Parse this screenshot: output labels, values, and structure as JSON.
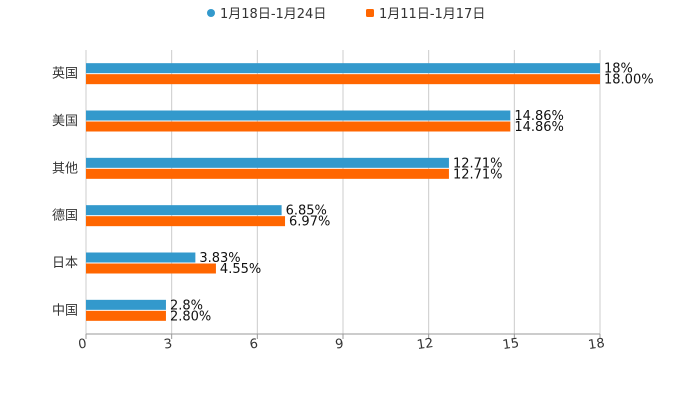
{
  "chart_data": {
    "type": "bar",
    "orientation": "horizontal",
    "title": "",
    "xlabel": "",
    "ylabel": "",
    "xlim": [
      0,
      18
    ],
    "x_ticks": [
      "0",
      "3",
      "6",
      "9",
      "12",
      "15",
      "18"
    ],
    "grid": true,
    "legend_position": "top-center",
    "categories": [
      "英国",
      "美国",
      "其他",
      "德国",
      "日本",
      "中国"
    ],
    "series": [
      {
        "name": "1月18日-1月24日",
        "color": "#3399cc",
        "marker": "circle",
        "values": [
          18,
          14.86,
          12.71,
          6.85,
          3.83,
          2.8
        ],
        "labels": [
          "18%",
          "14.86%",
          "12.71%",
          "6.85%",
          "3.83%",
          "2.8%"
        ]
      },
      {
        "name": "1月11日-1月17日",
        "color": "#ff6600",
        "marker": "square",
        "values": [
          18.0,
          14.86,
          12.71,
          6.97,
          4.55,
          2.8
        ],
        "labels": [
          "18.00%",
          "14.86%",
          "12.71%",
          "6.97%",
          "4.55%",
          "2.80%"
        ]
      }
    ]
  }
}
